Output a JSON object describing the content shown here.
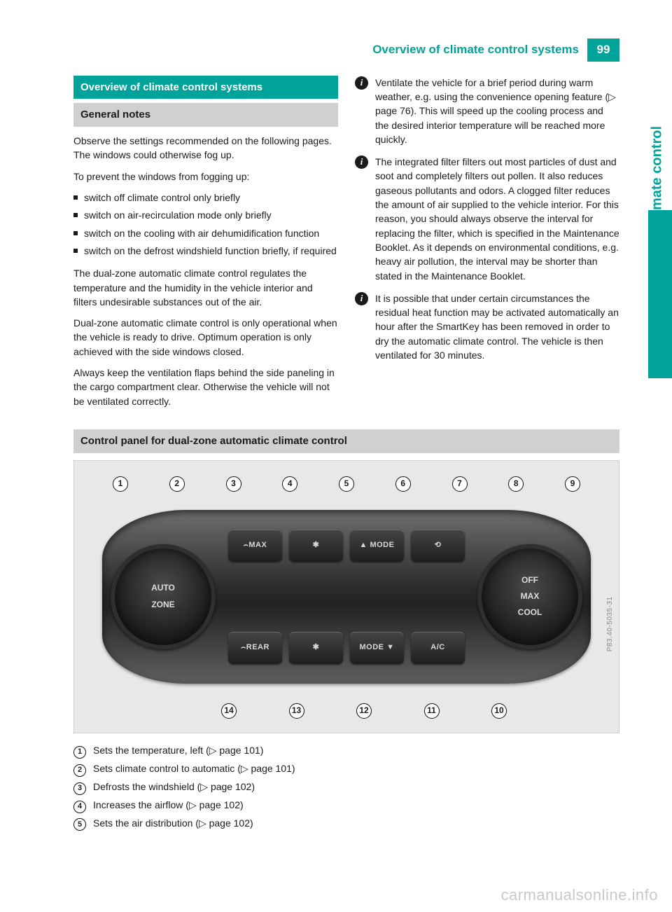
{
  "header": {
    "title": "Overview of climate control systems",
    "page_number": "99"
  },
  "side_tab_label": "Climate control",
  "left_col": {
    "section_heading": "Overview of climate control systems",
    "sub_heading": "General notes",
    "p1": "Observe the settings recommended on the following pages. The windows could otherwise fog up.",
    "p2": "To prevent the windows from fogging up:",
    "bullets": [
      "switch off climate control only briefly",
      "switch on air-recirculation mode only briefly",
      "switch on the cooling with air dehumidification function",
      "switch on the defrost windshield function briefly, if required"
    ],
    "p3": "The dual-zone automatic climate control regulates the temperature and the humidity in the vehicle interior and filters undesirable substances out of the air.",
    "p4": "Dual-zone automatic climate control is only operational when the vehicle is ready to drive. Optimum operation is only achieved with the side windows closed.",
    "p5": "Always keep the ventilation flaps behind the side paneling in the cargo compartment clear. Otherwise the vehicle will not be ventilated correctly."
  },
  "right_col": {
    "info1": "Ventilate the vehicle for a brief period during warm weather, e.g. using the convenience opening feature (▷ page 76). This will speed up the cooling process and the desired interior temperature will be reached more quickly.",
    "info2": "The integrated filter filters out most particles of dust and soot and completely filters out pollen. It also reduces gaseous pollutants and odors. A clogged filter reduces the amount of air supplied to the vehicle interior. For this reason, you should always observe the interval for replacing the filter, which is specified in the Maintenance Booklet. As it depends on environmental conditions, e.g. heavy air pollution, the interval may be shorter than stated in the Maintenance Booklet.",
    "info3": "It is possible that under certain circumstances the residual heat function may be activated automatically an hour after the SmartKey has been removed in order to dry the automatic climate control. The vehicle is then ventilated for 30 minutes."
  },
  "panel_section": {
    "heading": "Control panel for dual-zone automatic climate control",
    "figure_code": "P83.40-5035-31",
    "callouts_top": [
      "1",
      "2",
      "3",
      "4",
      "5",
      "6",
      "7",
      "8",
      "9"
    ],
    "callouts_bottom": [
      "14",
      "13",
      "12",
      "11",
      "10"
    ],
    "dial_left": {
      "l1": "AUTO",
      "l2": "ZONE"
    },
    "dial_right": {
      "l1": "OFF",
      "l2": "MAX",
      "l3": "COOL"
    },
    "buttons_top": [
      "⌢MAX",
      "✱",
      "▲ MODE",
      "⟲"
    ],
    "buttons_bottom": [
      "⌢REAR",
      "✱",
      "MODE ▼",
      "A/C"
    ],
    "legend": [
      {
        "m": "1",
        "text": "Sets the temperature, left (▷ page 101)"
      },
      {
        "m": "2",
        "text": "Sets climate control to automatic (▷ page 101)"
      },
      {
        "m": "3",
        "text": "Defrosts the windshield (▷ page 102)"
      },
      {
        "m": "4",
        "text": "Increases the airflow (▷ page 102)"
      },
      {
        "m": "5",
        "text": "Sets the air distribution (▷ page 102)"
      }
    ]
  },
  "watermark": "carmanualsonline.info",
  "colors": {
    "teal": "#00a39a",
    "grey_heading": "#d0d0d0",
    "text": "#1a1a1a",
    "figure_bg": "#e8e8e8"
  }
}
